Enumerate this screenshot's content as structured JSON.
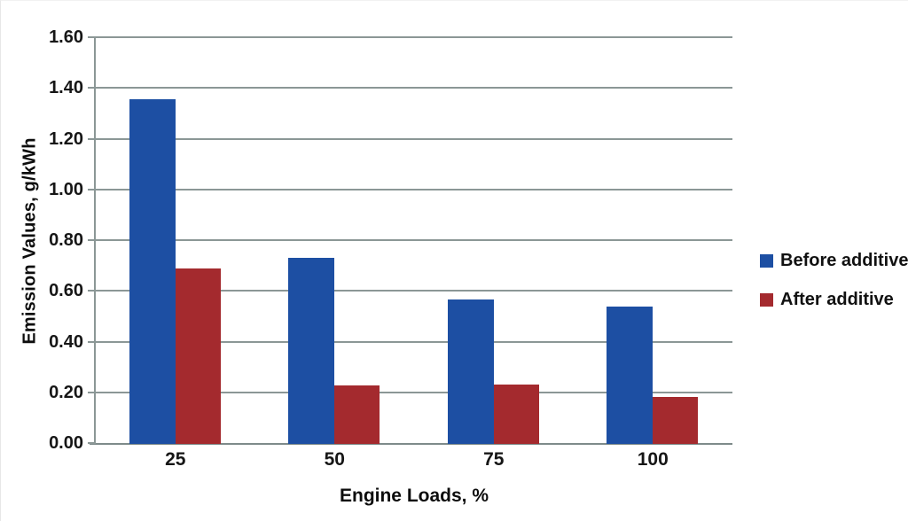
{
  "chart_data": {
    "type": "bar",
    "title": "",
    "xlabel": "Engine Loads, %",
    "ylabel": "Emission Values, g/kWh",
    "categories": [
      "25",
      "50",
      "75",
      "100"
    ],
    "series": [
      {
        "name": "Before additive",
        "color": "#1d4fa3",
        "values": [
          1.36,
          0.735,
          0.57,
          0.54
        ]
      },
      {
        "name": "After additive",
        "color": "#a42a2e",
        "values": [
          0.69,
          0.23,
          0.235,
          0.185
        ]
      }
    ],
    "ylim": [
      0,
      1.6
    ],
    "ytick_step": 0.2,
    "ytick_labels": [
      "0.00",
      "0.20",
      "0.40",
      "0.60",
      "0.80",
      "1.00",
      "1.20",
      "1.40",
      "1.60"
    ],
    "grid": true,
    "legend_position": "right",
    "colors": {
      "gridline": "#8b9796",
      "axis": "#7e8b8a",
      "text": "#161616"
    }
  }
}
